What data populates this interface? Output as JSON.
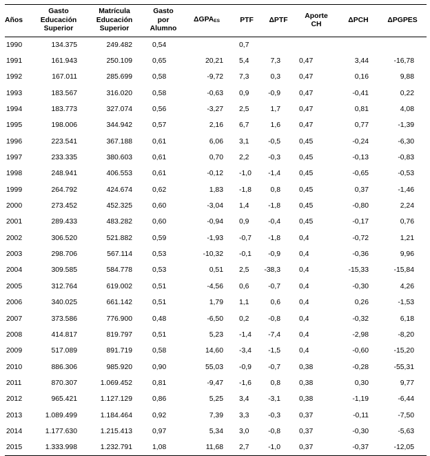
{
  "table": {
    "headers": {
      "anio": "Años",
      "gasto": [
        "Gasto",
        "Educación",
        "Superior"
      ],
      "matricula": [
        "Matrícula",
        "Educación",
        "Superior"
      ],
      "gasto_alumno": [
        "Gasto",
        "por",
        "Alumno"
      ],
      "dgpa": "ΔGPA",
      "dgpa_sub": "ES",
      "ptf": "PTF",
      "dptf": "ΔPTF",
      "aporte": [
        "Aporte",
        "CH"
      ],
      "dpch": "ΔPCH",
      "dpgpes": "ΔPGPES"
    },
    "rows": [
      {
        "anio": "1990",
        "gasto": "134.375",
        "matricula": "249.482",
        "gasto_alumno": "0,54",
        "dgpa": "",
        "ptf": "0,7",
        "dptf": "",
        "aporte": "",
        "dpch": "",
        "dpgpes": ""
      },
      {
        "anio": "1991",
        "gasto": "161.943",
        "matricula": "250.109",
        "gasto_alumno": "0,65",
        "dgpa": "20,21",
        "ptf": "5,4",
        "dptf": "7,3",
        "aporte": "0,47",
        "dpch": "3,44",
        "dpgpes": "-16,78"
      },
      {
        "anio": "1992",
        "gasto": "167.011",
        "matricula": "285.699",
        "gasto_alumno": "0,58",
        "dgpa": "-9,72",
        "ptf": "7,3",
        "dptf": "0,3",
        "aporte": "0,47",
        "dpch": "0,16",
        "dpgpes": "9,88"
      },
      {
        "anio": "1993",
        "gasto": "183.567",
        "matricula": "316.020",
        "gasto_alumno": "0,58",
        "dgpa": "-0,63",
        "ptf": "0,9",
        "dptf": "-0,9",
        "aporte": "0,47",
        "dpch": "-0,41",
        "dpgpes": "0,22"
      },
      {
        "anio": "1994",
        "gasto": "183.773",
        "matricula": "327.074",
        "gasto_alumno": "0,56",
        "dgpa": "-3,27",
        "ptf": "2,5",
        "dptf": "1,7",
        "aporte": "0,47",
        "dpch": "0,81",
        "dpgpes": "4,08"
      },
      {
        "anio": "1995",
        "gasto": "198.006",
        "matricula": "344.942",
        "gasto_alumno": "0,57",
        "dgpa": "2,16",
        "ptf": "6,7",
        "dptf": "1,6",
        "aporte": "0,47",
        "dpch": "0,77",
        "dpgpes": "-1,39"
      },
      {
        "anio": "1996",
        "gasto": "223.541",
        "matricula": "367.188",
        "gasto_alumno": "0,61",
        "dgpa": "6,06",
        "ptf": "3,1",
        "dptf": "-0,5",
        "aporte": "0,45",
        "dpch": "-0,24",
        "dpgpes": "-6,30"
      },
      {
        "anio": "1997",
        "gasto": "233.335",
        "matricula": "380.603",
        "gasto_alumno": "0,61",
        "dgpa": "0,70",
        "ptf": "2,2",
        "dptf": "-0,3",
        "aporte": "0,45",
        "dpch": "-0,13",
        "dpgpes": "-0,83"
      },
      {
        "anio": "1998",
        "gasto": "248.941",
        "matricula": "406.553",
        "gasto_alumno": "0,61",
        "dgpa": "-0,12",
        "ptf": "-1,0",
        "dptf": "-1,4",
        "aporte": "0,45",
        "dpch": "-0,65",
        "dpgpes": "-0,53"
      },
      {
        "anio": "1999",
        "gasto": "264.792",
        "matricula": "424.674",
        "gasto_alumno": "0,62",
        "dgpa": "1,83",
        "ptf": "-1,8",
        "dptf": "0,8",
        "aporte": "0,45",
        "dpch": "0,37",
        "dpgpes": "-1,46"
      },
      {
        "anio": "2000",
        "gasto": "273.452",
        "matricula": "452.325",
        "gasto_alumno": "0,60",
        "dgpa": "-3,04",
        "ptf": "1,4",
        "dptf": "-1,8",
        "aporte": "0,45",
        "dpch": "-0,80",
        "dpgpes": "2,24"
      },
      {
        "anio": "2001",
        "gasto": "289.433",
        "matricula": "483.282",
        "gasto_alumno": "0,60",
        "dgpa": "-0,94",
        "ptf": "0,9",
        "dptf": "-0,4",
        "aporte": "0,45",
        "dpch": "-0,17",
        "dpgpes": "0,76"
      },
      {
        "anio": "2002",
        "gasto": "306.520",
        "matricula": "521.882",
        "gasto_alumno": "0,59",
        "dgpa": "-1,93",
        "ptf": "-0,7",
        "dptf": "-1,8",
        "aporte": "0,4",
        "dpch": "-0,72",
        "dpgpes": "1,21"
      },
      {
        "anio": "2003",
        "gasto": "298.706",
        "matricula": "567.114",
        "gasto_alumno": "0,53",
        "dgpa": "-10,32",
        "ptf": "-0,1",
        "dptf": "-0,9",
        "aporte": "0,4",
        "dpch": "-0,36",
        "dpgpes": "9,96"
      },
      {
        "anio": "2004",
        "gasto": "309.585",
        "matricula": "584.778",
        "gasto_alumno": "0,53",
        "dgpa": "0,51",
        "ptf": "2,5",
        "dptf": "-38,3",
        "aporte": "0,4",
        "dpch": "-15,33",
        "dpgpes": "-15,84"
      },
      {
        "anio": "2005",
        "gasto": "312.764",
        "matricula": "619.002",
        "gasto_alumno": "0,51",
        "dgpa": "-4,56",
        "ptf": "0,6",
        "dptf": "-0,7",
        "aporte": "0,4",
        "dpch": "-0,30",
        "dpgpes": "4,26"
      },
      {
        "anio": "2006",
        "gasto": "340.025",
        "matricula": "661.142",
        "gasto_alumno": "0,51",
        "dgpa": "1,79",
        "ptf": "1,1",
        "dptf": "0,6",
        "aporte": "0,4",
        "dpch": "0,26",
        "dpgpes": "-1,53"
      },
      {
        "anio": "2007",
        "gasto": "373.586",
        "matricula": "776.900",
        "gasto_alumno": "0,48",
        "dgpa": "-6,50",
        "ptf": "0,2",
        "dptf": "-0,8",
        "aporte": "0,4",
        "dpch": "-0,32",
        "dpgpes": "6,18"
      },
      {
        "anio": "2008",
        "gasto": "414.817",
        "matricula": "819.797",
        "gasto_alumno": "0,51",
        "dgpa": "5,23",
        "ptf": "-1,4",
        "dptf": "-7,4",
        "aporte": "0,4",
        "dpch": "-2,98",
        "dpgpes": "-8,20"
      },
      {
        "anio": "2009",
        "gasto": "517.089",
        "matricula": "891.719",
        "gasto_alumno": "0,58",
        "dgpa": "14,60",
        "ptf": "-3,4",
        "dptf": "-1,5",
        "aporte": "0,4",
        "dpch": "-0,60",
        "dpgpes": "-15,20"
      },
      {
        "anio": "2010",
        "gasto": "886.306",
        "matricula": "985.920",
        "gasto_alumno": "0,90",
        "dgpa": "55,03",
        "ptf": "-0,9",
        "dptf": "-0,7",
        "aporte": "0,38",
        "dpch": "-0,28",
        "dpgpes": "-55,31"
      },
      {
        "anio": "2011",
        "gasto": "870.307",
        "matricula": "1.069.452",
        "gasto_alumno": "0,81",
        "dgpa": "-9,47",
        "ptf": "-1,6",
        "dptf": "0,8",
        "aporte": "0,38",
        "dpch": "0,30",
        "dpgpes": "9,77"
      },
      {
        "anio": "2012",
        "gasto": "965.421",
        "matricula": "1.127.129",
        "gasto_alumno": "0,86",
        "dgpa": "5,25",
        "ptf": "3,4",
        "dptf": "-3,1",
        "aporte": "0,38",
        "dpch": "-1,19",
        "dpgpes": "-6,44"
      },
      {
        "anio": "2013",
        "gasto": "1.089.499",
        "matricula": "1.184.464",
        "gasto_alumno": "0,92",
        "dgpa": "7,39",
        "ptf": "3,3",
        "dptf": "-0,3",
        "aporte": "0,37",
        "dpch": "-0,11",
        "dpgpes": "-7,50"
      },
      {
        "anio": "2014",
        "gasto": "1.177.630",
        "matricula": "1.215.413",
        "gasto_alumno": "0,97",
        "dgpa": "5,34",
        "ptf": "3,0",
        "dptf": "-0,8",
        "aporte": "0,37",
        "dpch": "-0,30",
        "dpgpes": "-5,63"
      },
      {
        "anio": "2015",
        "gasto": "1.333.998",
        "matricula": "1.232.791",
        "gasto_alumno": "1,08",
        "dgpa": "11,68",
        "ptf": "2,7",
        "dptf": "-1,0",
        "aporte": "0,37",
        "dpch": "-0,37",
        "dpgpes": "-12,05"
      }
    ]
  }
}
